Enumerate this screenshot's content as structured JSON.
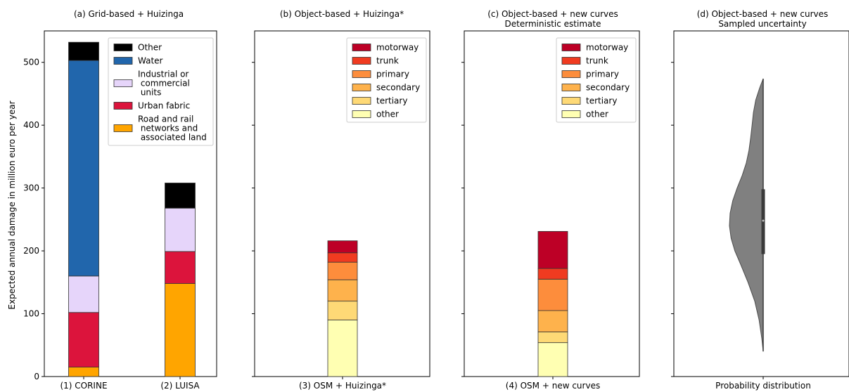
{
  "chart_data": [
    {
      "type": "bar",
      "stacked": true,
      "title": "(a) Grid-based + Huizinga",
      "ylabel": "Expected annual damage in million euro per year",
      "ylim": [
        0,
        550
      ],
      "yticks": [
        0,
        100,
        200,
        300,
        400,
        500
      ],
      "categories": [
        "(1) CORINE",
        "(2) LUISA"
      ],
      "legend_position": "top-right",
      "series": [
        {
          "name": "Road and rail\n networks and\n associated land",
          "color": "#ffa500",
          "values": [
            15,
            148
          ]
        },
        {
          "name": "Urban fabric",
          "color": "#dc143c",
          "values": [
            87,
            51
          ]
        },
        {
          "name": "Industrial or\n commercial\n units",
          "color": "#e6d5fa",
          "values": [
            58,
            69
          ]
        },
        {
          "name": "Water",
          "color": "#2166ac",
          "values": [
            343,
            0
          ]
        },
        {
          "name": "Other",
          "color": "#000000",
          "values": [
            29,
            40
          ]
        }
      ]
    },
    {
      "type": "bar",
      "stacked": true,
      "title": "(b) Object-based + Huizinga*",
      "ylim": [
        0,
        550
      ],
      "categories": [
        "(3) OSM + Huizinga*"
      ],
      "legend_position": "top-right",
      "series": [
        {
          "name": "other",
          "color": "#ffffb2",
          "values": [
            90
          ]
        },
        {
          "name": "tertiary",
          "color": "#fed976",
          "values": [
            30
          ]
        },
        {
          "name": "secondary",
          "color": "#feb24c",
          "values": [
            34
          ]
        },
        {
          "name": "primary",
          "color": "#fd8d3c",
          "values": [
            28
          ]
        },
        {
          "name": "trunk",
          "color": "#f03b20",
          "values": [
            15
          ]
        },
        {
          "name": "motorway",
          "color": "#bd0026",
          "values": [
            19
          ]
        }
      ]
    },
    {
      "type": "bar",
      "stacked": true,
      "title": "(c) Object-based + new curves",
      "subtitle": "Deterministic estimate",
      "ylim": [
        0,
        550
      ],
      "categories": [
        "(4) OSM + new curves"
      ],
      "legend_position": "top-right",
      "series": [
        {
          "name": "other",
          "color": "#ffffb2",
          "values": [
            54
          ]
        },
        {
          "name": "tertiary",
          "color": "#fed976",
          "values": [
            17
          ]
        },
        {
          "name": "secondary",
          "color": "#feb24c",
          "values": [
            34
          ]
        },
        {
          "name": "primary",
          "color": "#fd8d3c",
          "values": [
            50
          ]
        },
        {
          "name": "trunk",
          "color": "#f03b20",
          "values": [
            17
          ]
        },
        {
          "name": "motorway",
          "color": "#bd0026",
          "values": [
            59
          ]
        }
      ]
    },
    {
      "type": "violin",
      "title": "(d) Object-based + new curves",
      "subtitle": "Sampled uncertainty",
      "ylim": [
        0,
        550
      ],
      "categories": [
        "Probability distribution"
      ],
      "color": "#808080",
      "min": 40,
      "max": 474,
      "q1": 195,
      "median": 248,
      "q3": 298,
      "density_profile": [
        [
          40,
          0.0
        ],
        [
          60,
          0.04
        ],
        [
          90,
          0.12
        ],
        [
          120,
          0.25
        ],
        [
          150,
          0.45
        ],
        [
          180,
          0.68
        ],
        [
          200,
          0.84
        ],
        [
          220,
          0.95
        ],
        [
          240,
          1.0
        ],
        [
          260,
          0.98
        ],
        [
          280,
          0.9
        ],
        [
          300,
          0.77
        ],
        [
          320,
          0.62
        ],
        [
          340,
          0.5
        ],
        [
          360,
          0.42
        ],
        [
          380,
          0.37
        ],
        [
          400,
          0.33
        ],
        [
          420,
          0.29
        ],
        [
          440,
          0.22
        ],
        [
          460,
          0.1
        ],
        [
          474,
          0.0
        ]
      ]
    }
  ]
}
